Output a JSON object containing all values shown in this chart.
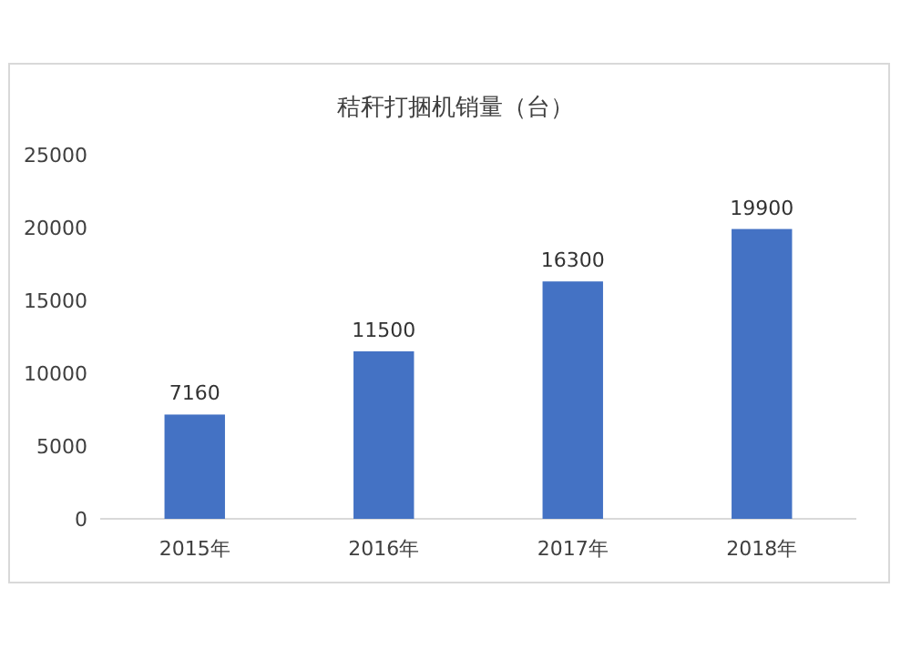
{
  "chart_data": {
    "type": "bar",
    "title": "秸秆打捆机销量（台）",
    "categories": [
      "2015年",
      "2016年",
      "2017年",
      "2018年"
    ],
    "values": [
      7160,
      11500,
      16300,
      19900
    ],
    "color": "#4472c4",
    "ylim": [
      0,
      25000
    ],
    "yticks": [
      0,
      5000,
      10000,
      15000,
      20000,
      25000
    ],
    "grid": false,
    "data_labels": true
  }
}
